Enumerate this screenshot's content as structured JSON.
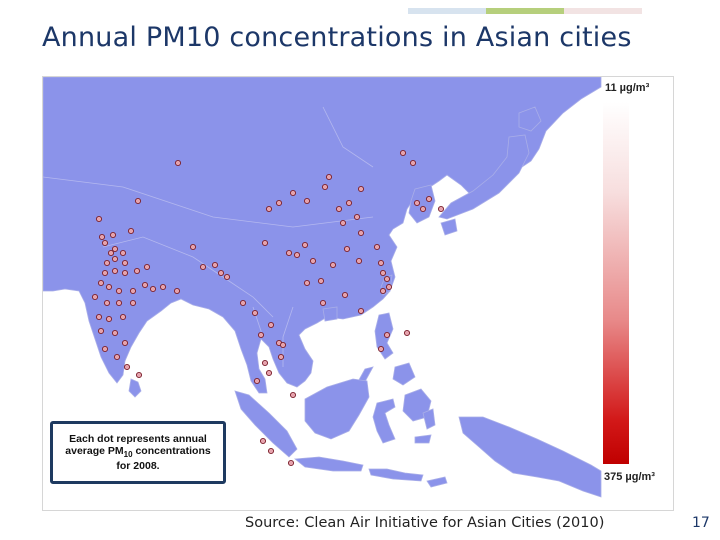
{
  "slide": {
    "title": "Annual PM10 concentrations in Asian cities",
    "source": "Source:  Clean Air Initiative for Asian Cities (2010)",
    "slide_number": "17",
    "accent_colors": [
      "#d7e3ef",
      "#b6cf7c",
      "#f2e3e3"
    ]
  },
  "map": {
    "land_color": "#8b93ea",
    "sea_color": "#ffffff",
    "border_color": "#a9aee8",
    "dot_fill": "#e6a3ad",
    "dot_stroke": "#7a1f2b",
    "note": {
      "line1": "Each dot represents annual",
      "line2_prefix": "average PM",
      "line2_sub": "10",
      "line2_suffix": " concentrations",
      "line3": "for 2008."
    },
    "legend": {
      "min_label": "11 µg/m³",
      "max_label": "375 µg/m³",
      "min_value": 11,
      "max_value": 375,
      "unit": "µg/m³",
      "color_low": "#ffffff",
      "color_high": "#c00000"
    }
  }
}
